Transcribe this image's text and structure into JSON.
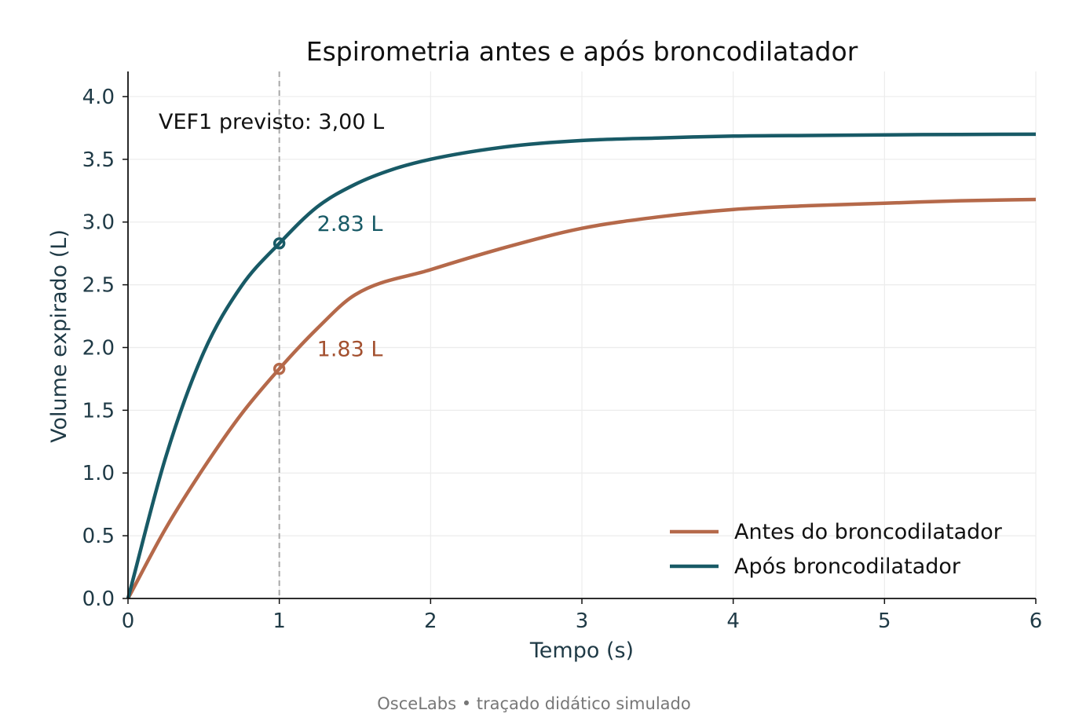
{
  "chart_data": {
    "type": "line",
    "title": "Espirometria antes e após broncodilatador",
    "xlabel": "Tempo (s)",
    "ylabel": "Volume expirado (L)",
    "xlim": [
      0,
      6
    ],
    "ylim": [
      0,
      4.2
    ],
    "xticks": [
      "0",
      "1",
      "2",
      "3",
      "4",
      "5",
      "6"
    ],
    "yticks": [
      "0.0",
      "0.5",
      "1.0",
      "1.5",
      "2.0",
      "2.5",
      "3.0",
      "3.5",
      "4.0"
    ],
    "grid": true,
    "legend_position": "lower-right",
    "reference_line": {
      "x": 1,
      "style": "dashed"
    },
    "annotation": "VEF1 previsto: 3,00 L",
    "series": [
      {
        "name": "Antes do broncodilatador",
        "color": "#b5694a",
        "label_color": "#a3502f",
        "x": [
          0,
          0.25,
          0.5,
          0.75,
          1,
          1.25,
          1.5,
          2,
          2.5,
          3,
          3.5,
          4,
          4.5,
          5,
          5.5,
          6
        ],
        "y": [
          0,
          0.56,
          1.04,
          1.47,
          1.83,
          2.15,
          2.42,
          2.62,
          2.8,
          2.95,
          3.04,
          3.1,
          3.13,
          3.15,
          3.17,
          3.18
        ],
        "marker": {
          "x": 1,
          "y": 1.83,
          "label": "1.83 L"
        }
      },
      {
        "name": "Após broncodilatador",
        "color": "#185a66",
        "label_color": "#185a66",
        "x": [
          0,
          0.25,
          0.5,
          0.75,
          1,
          1.25,
          1.5,
          1.75,
          2,
          2.5,
          3,
          3.5,
          4,
          4.5,
          5,
          5.5,
          6
        ],
        "y": [
          0,
          1.13,
          1.96,
          2.49,
          2.83,
          3.12,
          3.3,
          3.42,
          3.5,
          3.6,
          3.65,
          3.67,
          3.685,
          3.69,
          3.695,
          3.698,
          3.7
        ],
        "marker": {
          "x": 1,
          "y": 2.83,
          "label": "2.83 L"
        }
      }
    ]
  },
  "footer": "OsceLabs • traçado didático simulado"
}
